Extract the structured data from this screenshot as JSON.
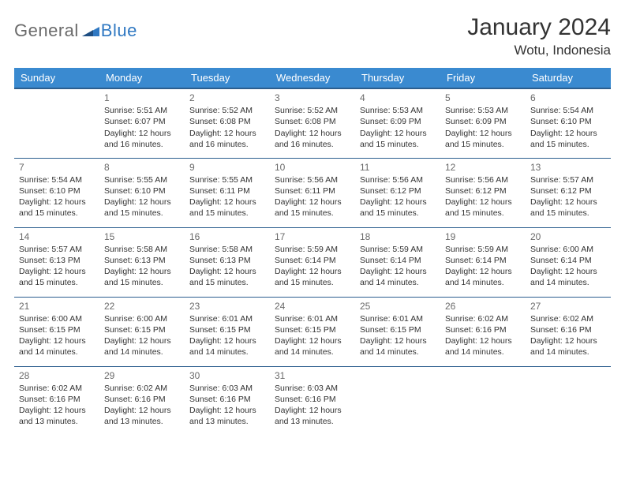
{
  "brand": {
    "general": "General",
    "blue": "Blue"
  },
  "title": "January 2024",
  "location": "Wotu, Indonesia",
  "colors": {
    "header_bg": "#3a8ad0",
    "header_border": "#2c5e8e",
    "text": "#333333",
    "muted": "#6a6a6a",
    "brand_blue": "#2f78c2",
    "background": "#ffffff"
  },
  "day_headers": [
    "Sunday",
    "Monday",
    "Tuesday",
    "Wednesday",
    "Thursday",
    "Friday",
    "Saturday"
  ],
  "weeks": [
    [
      {
        "num": "",
        "sunrise": "",
        "sunset": "",
        "dl1": "",
        "dl2": ""
      },
      {
        "num": "1",
        "sunrise": "Sunrise: 5:51 AM",
        "sunset": "Sunset: 6:07 PM",
        "dl1": "Daylight: 12 hours",
        "dl2": "and 16 minutes."
      },
      {
        "num": "2",
        "sunrise": "Sunrise: 5:52 AM",
        "sunset": "Sunset: 6:08 PM",
        "dl1": "Daylight: 12 hours",
        "dl2": "and 16 minutes."
      },
      {
        "num": "3",
        "sunrise": "Sunrise: 5:52 AM",
        "sunset": "Sunset: 6:08 PM",
        "dl1": "Daylight: 12 hours",
        "dl2": "and 16 minutes."
      },
      {
        "num": "4",
        "sunrise": "Sunrise: 5:53 AM",
        "sunset": "Sunset: 6:09 PM",
        "dl1": "Daylight: 12 hours",
        "dl2": "and 15 minutes."
      },
      {
        "num": "5",
        "sunrise": "Sunrise: 5:53 AM",
        "sunset": "Sunset: 6:09 PM",
        "dl1": "Daylight: 12 hours",
        "dl2": "and 15 minutes."
      },
      {
        "num": "6",
        "sunrise": "Sunrise: 5:54 AM",
        "sunset": "Sunset: 6:10 PM",
        "dl1": "Daylight: 12 hours",
        "dl2": "and 15 minutes."
      }
    ],
    [
      {
        "num": "7",
        "sunrise": "Sunrise: 5:54 AM",
        "sunset": "Sunset: 6:10 PM",
        "dl1": "Daylight: 12 hours",
        "dl2": "and 15 minutes."
      },
      {
        "num": "8",
        "sunrise": "Sunrise: 5:55 AM",
        "sunset": "Sunset: 6:10 PM",
        "dl1": "Daylight: 12 hours",
        "dl2": "and 15 minutes."
      },
      {
        "num": "9",
        "sunrise": "Sunrise: 5:55 AM",
        "sunset": "Sunset: 6:11 PM",
        "dl1": "Daylight: 12 hours",
        "dl2": "and 15 minutes."
      },
      {
        "num": "10",
        "sunrise": "Sunrise: 5:56 AM",
        "sunset": "Sunset: 6:11 PM",
        "dl1": "Daylight: 12 hours",
        "dl2": "and 15 minutes."
      },
      {
        "num": "11",
        "sunrise": "Sunrise: 5:56 AM",
        "sunset": "Sunset: 6:12 PM",
        "dl1": "Daylight: 12 hours",
        "dl2": "and 15 minutes."
      },
      {
        "num": "12",
        "sunrise": "Sunrise: 5:56 AM",
        "sunset": "Sunset: 6:12 PM",
        "dl1": "Daylight: 12 hours",
        "dl2": "and 15 minutes."
      },
      {
        "num": "13",
        "sunrise": "Sunrise: 5:57 AM",
        "sunset": "Sunset: 6:12 PM",
        "dl1": "Daylight: 12 hours",
        "dl2": "and 15 minutes."
      }
    ],
    [
      {
        "num": "14",
        "sunrise": "Sunrise: 5:57 AM",
        "sunset": "Sunset: 6:13 PM",
        "dl1": "Daylight: 12 hours",
        "dl2": "and 15 minutes."
      },
      {
        "num": "15",
        "sunrise": "Sunrise: 5:58 AM",
        "sunset": "Sunset: 6:13 PM",
        "dl1": "Daylight: 12 hours",
        "dl2": "and 15 minutes."
      },
      {
        "num": "16",
        "sunrise": "Sunrise: 5:58 AM",
        "sunset": "Sunset: 6:13 PM",
        "dl1": "Daylight: 12 hours",
        "dl2": "and 15 minutes."
      },
      {
        "num": "17",
        "sunrise": "Sunrise: 5:59 AM",
        "sunset": "Sunset: 6:14 PM",
        "dl1": "Daylight: 12 hours",
        "dl2": "and 15 minutes."
      },
      {
        "num": "18",
        "sunrise": "Sunrise: 5:59 AM",
        "sunset": "Sunset: 6:14 PM",
        "dl1": "Daylight: 12 hours",
        "dl2": "and 14 minutes."
      },
      {
        "num": "19",
        "sunrise": "Sunrise: 5:59 AM",
        "sunset": "Sunset: 6:14 PM",
        "dl1": "Daylight: 12 hours",
        "dl2": "and 14 minutes."
      },
      {
        "num": "20",
        "sunrise": "Sunrise: 6:00 AM",
        "sunset": "Sunset: 6:14 PM",
        "dl1": "Daylight: 12 hours",
        "dl2": "and 14 minutes."
      }
    ],
    [
      {
        "num": "21",
        "sunrise": "Sunrise: 6:00 AM",
        "sunset": "Sunset: 6:15 PM",
        "dl1": "Daylight: 12 hours",
        "dl2": "and 14 minutes."
      },
      {
        "num": "22",
        "sunrise": "Sunrise: 6:00 AM",
        "sunset": "Sunset: 6:15 PM",
        "dl1": "Daylight: 12 hours",
        "dl2": "and 14 minutes."
      },
      {
        "num": "23",
        "sunrise": "Sunrise: 6:01 AM",
        "sunset": "Sunset: 6:15 PM",
        "dl1": "Daylight: 12 hours",
        "dl2": "and 14 minutes."
      },
      {
        "num": "24",
        "sunrise": "Sunrise: 6:01 AM",
        "sunset": "Sunset: 6:15 PM",
        "dl1": "Daylight: 12 hours",
        "dl2": "and 14 minutes."
      },
      {
        "num": "25",
        "sunrise": "Sunrise: 6:01 AM",
        "sunset": "Sunset: 6:15 PM",
        "dl1": "Daylight: 12 hours",
        "dl2": "and 14 minutes."
      },
      {
        "num": "26",
        "sunrise": "Sunrise: 6:02 AM",
        "sunset": "Sunset: 6:16 PM",
        "dl1": "Daylight: 12 hours",
        "dl2": "and 14 minutes."
      },
      {
        "num": "27",
        "sunrise": "Sunrise: 6:02 AM",
        "sunset": "Sunset: 6:16 PM",
        "dl1": "Daylight: 12 hours",
        "dl2": "and 14 minutes."
      }
    ],
    [
      {
        "num": "28",
        "sunrise": "Sunrise: 6:02 AM",
        "sunset": "Sunset: 6:16 PM",
        "dl1": "Daylight: 12 hours",
        "dl2": "and 13 minutes."
      },
      {
        "num": "29",
        "sunrise": "Sunrise: 6:02 AM",
        "sunset": "Sunset: 6:16 PM",
        "dl1": "Daylight: 12 hours",
        "dl2": "and 13 minutes."
      },
      {
        "num": "30",
        "sunrise": "Sunrise: 6:03 AM",
        "sunset": "Sunset: 6:16 PM",
        "dl1": "Daylight: 12 hours",
        "dl2": "and 13 minutes."
      },
      {
        "num": "31",
        "sunrise": "Sunrise: 6:03 AM",
        "sunset": "Sunset: 6:16 PM",
        "dl1": "Daylight: 12 hours",
        "dl2": "and 13 minutes."
      },
      {
        "num": "",
        "sunrise": "",
        "sunset": "",
        "dl1": "",
        "dl2": ""
      },
      {
        "num": "",
        "sunrise": "",
        "sunset": "",
        "dl1": "",
        "dl2": ""
      },
      {
        "num": "",
        "sunrise": "",
        "sunset": "",
        "dl1": "",
        "dl2": ""
      }
    ]
  ]
}
